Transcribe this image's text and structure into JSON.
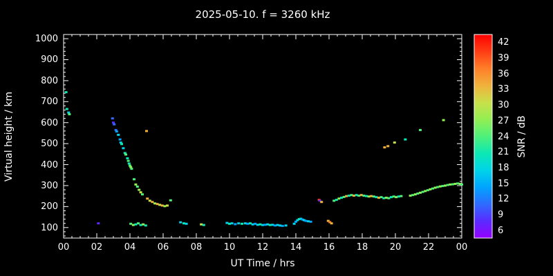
{
  "chart_data": {
    "type": "scatter",
    "title": "2025-05-10. f = 3260 kHz",
    "xlabel": "UT Time / hrs",
    "ylabel": "Virtual height / km",
    "xlim": [
      0,
      24
    ],
    "ylim": [
      50,
      1020
    ],
    "background_color": "#000000",
    "axis_color": "#ffffff",
    "grid": false,
    "x_ticks": {
      "values": [
        0,
        2,
        4,
        6,
        8,
        10,
        12,
        14,
        16,
        18,
        20,
        22,
        24
      ],
      "labels": [
        "00",
        "02",
        "04",
        "06",
        "08",
        "10",
        "12",
        "14",
        "16",
        "18",
        "20",
        "22",
        "00"
      ]
    },
    "y_ticks": {
      "values": [
        100,
        200,
        300,
        400,
        500,
        600,
        700,
        800,
        900,
        1000
      ],
      "labels": [
        "100",
        "200",
        "300",
        "400",
        "500",
        "600",
        "700",
        "800",
        "900",
        "1000"
      ]
    },
    "colorbar": {
      "label": "SNR / dB",
      "range": [
        4.5,
        43.5
      ],
      "tick_values": [
        6,
        9,
        12,
        15,
        18,
        21,
        24,
        27,
        30,
        33,
        36,
        39,
        42
      ],
      "palette_values": [
        6,
        9,
        12,
        15,
        18,
        21,
        24,
        27,
        30,
        33,
        36,
        39,
        42
      ],
      "palette_colors": [
        "#9400ff",
        "#5a2bff",
        "#2e6bff",
        "#00a4ff",
        "#00d4e8",
        "#0ce8b4",
        "#4ff07a",
        "#93ef52",
        "#c9e04a",
        "#f0b13c",
        "#ff7e28",
        "#ff3d14",
        "#ff0000"
      ]
    },
    "points": [
      [
        0.15,
        745,
        21
      ],
      [
        0.2,
        665,
        21
      ],
      [
        0.3,
        648,
        18
      ],
      [
        0.35,
        640,
        24
      ],
      [
        2.1,
        120,
        9
      ],
      [
        2.95,
        620,
        12
      ],
      [
        3.0,
        600,
        9
      ],
      [
        3.05,
        592,
        12
      ],
      [
        3.15,
        565,
        12
      ],
      [
        3.2,
        558,
        15
      ],
      [
        3.3,
        542,
        18
      ],
      [
        3.4,
        520,
        15
      ],
      [
        3.45,
        505,
        18
      ],
      [
        3.5,
        498,
        21
      ],
      [
        3.6,
        478,
        18
      ],
      [
        3.7,
        455,
        21
      ],
      [
        3.75,
        448,
        24
      ],
      [
        3.85,
        430,
        21
      ],
      [
        3.9,
        418,
        24
      ],
      [
        3.95,
        405,
        21
      ],
      [
        4.0,
        395,
        24
      ],
      [
        4.05,
        388,
        27
      ],
      [
        4.1,
        380,
        24
      ],
      [
        4.25,
        330,
        24
      ],
      [
        4.35,
        305,
        27
      ],
      [
        4.45,
        295,
        24
      ],
      [
        4.55,
        280,
        27
      ],
      [
        4.65,
        268,
        30
      ],
      [
        4.75,
        258,
        24
      ],
      [
        5.0,
        560,
        33
      ],
      [
        5.05,
        238,
        33
      ],
      [
        5.2,
        228,
        30
      ],
      [
        5.35,
        222,
        33
      ],
      [
        5.5,
        215,
        27
      ],
      [
        5.65,
        212,
        33
      ],
      [
        5.8,
        208,
        30
      ],
      [
        5.95,
        205,
        33
      ],
      [
        6.1,
        202,
        27
      ],
      [
        6.25,
        205,
        30
      ],
      [
        6.45,
        230,
        24
      ],
      [
        4.05,
        118,
        24
      ],
      [
        4.2,
        112,
        27
      ],
      [
        4.35,
        115,
        21
      ],
      [
        4.5,
        120,
        24
      ],
      [
        4.65,
        112,
        21
      ],
      [
        4.8,
        115,
        27
      ],
      [
        4.95,
        110,
        21
      ],
      [
        7.05,
        125,
        18
      ],
      [
        7.25,
        120,
        21
      ],
      [
        7.4,
        118,
        18
      ],
      [
        8.3,
        115,
        30
      ],
      [
        8.45,
        112,
        21
      ],
      [
        9.85,
        122,
        18
      ],
      [
        10.0,
        118,
        21
      ],
      [
        10.15,
        120,
        18
      ],
      [
        10.35,
        116,
        15
      ],
      [
        10.55,
        120,
        18
      ],
      [
        10.75,
        118,
        21
      ],
      [
        10.95,
        120,
        18
      ],
      [
        11.1,
        118,
        15
      ],
      [
        11.25,
        120,
        21
      ],
      [
        11.4,
        115,
        18
      ],
      [
        11.55,
        118,
        15
      ],
      [
        11.7,
        113,
        18
      ],
      [
        11.85,
        115,
        21
      ],
      [
        12.0,
        112,
        18
      ],
      [
        12.15,
        113,
        15
      ],
      [
        12.3,
        115,
        18
      ],
      [
        12.45,
        112,
        21
      ],
      [
        12.6,
        113,
        18
      ],
      [
        12.75,
        110,
        15
      ],
      [
        12.9,
        112,
        18
      ],
      [
        13.05,
        110,
        18
      ],
      [
        13.2,
        108,
        15
      ],
      [
        13.4,
        110,
        18
      ],
      [
        13.9,
        118,
        18
      ],
      [
        14.0,
        128,
        15
      ],
      [
        14.1,
        135,
        18
      ],
      [
        14.2,
        140,
        21
      ],
      [
        14.3,
        142,
        18
      ],
      [
        14.4,
        138,
        15
      ],
      [
        14.5,
        135,
        18
      ],
      [
        14.6,
        132,
        15
      ],
      [
        14.75,
        130,
        18
      ],
      [
        14.9,
        128,
        15
      ],
      [
        15.4,
        232,
        39
      ],
      [
        15.45,
        228,
        9
      ],
      [
        15.55,
        222,
        33
      ],
      [
        15.95,
        132,
        33
      ],
      [
        16.05,
        126,
        36
      ],
      [
        16.15,
        120,
        33
      ],
      [
        16.3,
        228,
        24
      ],
      [
        16.45,
        232,
        21
      ],
      [
        16.6,
        238,
        27
      ],
      [
        16.75,
        242,
        21
      ],
      [
        16.9,
        246,
        24
      ],
      [
        17.05,
        250,
        33
      ],
      [
        17.2,
        252,
        21
      ],
      [
        17.35,
        255,
        24
      ],
      [
        17.5,
        252,
        33
      ],
      [
        17.65,
        255,
        21
      ],
      [
        17.8,
        252,
        24
      ],
      [
        17.95,
        255,
        33
      ],
      [
        18.1,
        252,
        24
      ],
      [
        18.25,
        250,
        21
      ],
      [
        18.4,
        248,
        27
      ],
      [
        18.55,
        250,
        33
      ],
      [
        18.7,
        248,
        24
      ],
      [
        18.85,
        245,
        21
      ],
      [
        19.0,
        242,
        33
      ],
      [
        19.15,
        245,
        24
      ],
      [
        19.3,
        240,
        21
      ],
      [
        19.45,
        242,
        27
      ],
      [
        19.6,
        240,
        24
      ],
      [
        19.75,
        245,
        21
      ],
      [
        19.9,
        248,
        24
      ],
      [
        20.05,
        245,
        27
      ],
      [
        20.2,
        248,
        21
      ],
      [
        20.35,
        250,
        24
      ],
      [
        19.35,
        482,
        33
      ],
      [
        19.55,
        488,
        33
      ],
      [
        19.95,
        505,
        30
      ],
      [
        20.6,
        520,
        21
      ],
      [
        21.5,
        565,
        24
      ],
      [
        20.9,
        252,
        27
      ],
      [
        21.05,
        255,
        24
      ],
      [
        21.2,
        258,
        27
      ],
      [
        21.35,
        262,
        24
      ],
      [
        21.5,
        266,
        27
      ],
      [
        21.65,
        270,
        24
      ],
      [
        21.8,
        274,
        27
      ],
      [
        21.95,
        278,
        24
      ],
      [
        22.1,
        282,
        27
      ],
      [
        22.25,
        286,
        24
      ],
      [
        22.4,
        290,
        27
      ],
      [
        22.55,
        293,
        24
      ],
      [
        22.7,
        296,
        27
      ],
      [
        22.85,
        298,
        24
      ],
      [
        23.0,
        300,
        27
      ],
      [
        23.15,
        303,
        24
      ],
      [
        23.3,
        305,
        27
      ],
      [
        23.45,
        306,
        24
      ],
      [
        23.6,
        308,
        27
      ],
      [
        23.75,
        310,
        24
      ],
      [
        23.9,
        308,
        27
      ],
      [
        24.0,
        305,
        24
      ],
      [
        22.9,
        612,
        27
      ]
    ]
  }
}
